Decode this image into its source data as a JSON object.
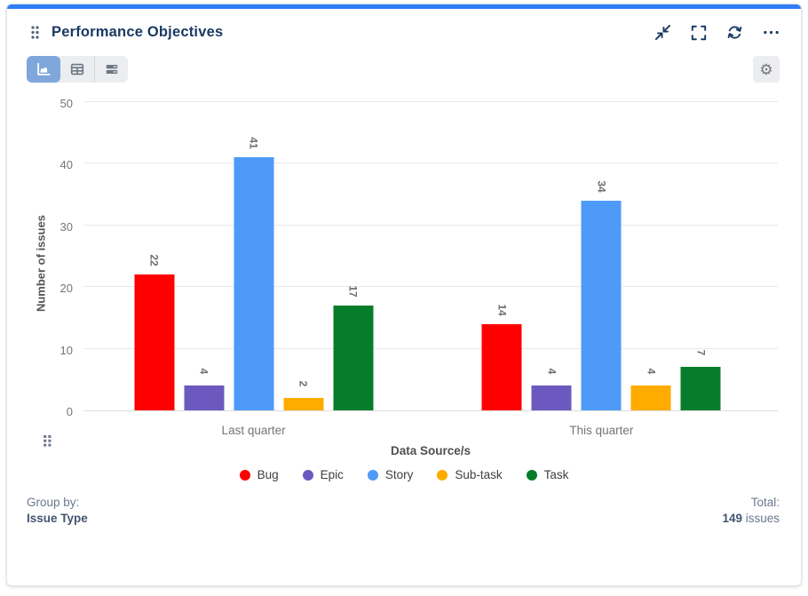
{
  "header": {
    "title": "Performance Objectives"
  },
  "toolbar": {
    "view_switcher": {
      "selected": "chart-view",
      "views": [
        "chart-view",
        "table-view",
        "row-view"
      ]
    }
  },
  "icons": {
    "gear": "⚙"
  },
  "chart_data": {
    "type": "bar",
    "title": "Performance Objectives",
    "categories": [
      "Last quarter",
      "This quarter"
    ],
    "series": [
      {
        "name": "Bug",
        "color": "#FF0000",
        "values": [
          22,
          14
        ]
      },
      {
        "name": "Epic",
        "color": "#6C59BF",
        "values": [
          4,
          4
        ]
      },
      {
        "name": "Story",
        "color": "#4D9AF8",
        "values": [
          41,
          34
        ]
      },
      {
        "name": "Sub-task",
        "color": "#FFAB00",
        "values": [
          2,
          4
        ]
      },
      {
        "name": "Task",
        "color": "#077D2B",
        "values": [
          17,
          7
        ]
      }
    ],
    "xlabel": "Data Source/s",
    "ylabel": "Number of issues",
    "ylim": [
      0,
      50
    ],
    "yticks": [
      0,
      10,
      20,
      30,
      40,
      50
    ],
    "grid": true,
    "legend_position": "bottom",
    "value_labels": true,
    "accent_color": "#2E7DF6"
  },
  "footer": {
    "group_by_label": "Group by:",
    "group_by_value": "Issue Type",
    "total_label": "Total:",
    "total_value": "149",
    "total_suffix": " issues"
  }
}
